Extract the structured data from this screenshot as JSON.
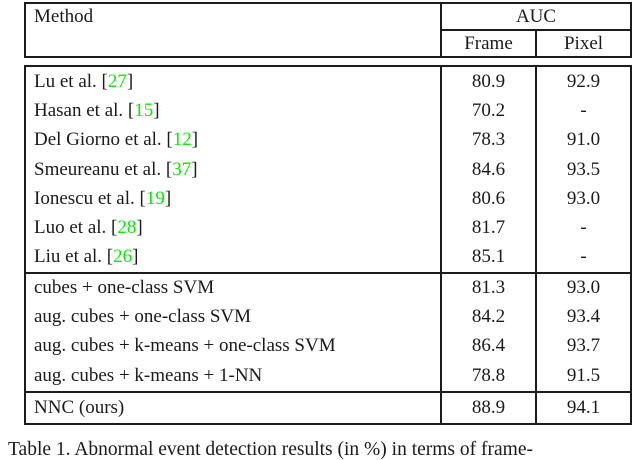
{
  "colors": {
    "text": "#1a1a1a",
    "border": "#1c1c1c",
    "citation_green": "#00ee00",
    "background": "#ffffff"
  },
  "table": {
    "header": {
      "method_label": "Method",
      "auc_label": "AUC",
      "frame_label": "Frame",
      "pixel_label": "Pixel"
    },
    "sections": [
      {
        "rows": [
          {
            "method": "Lu et al.",
            "cite": "27",
            "frame": "80.9",
            "pixel": "92.9"
          },
          {
            "method": "Hasan et al.",
            "cite": "15",
            "frame": "70.2",
            "pixel": "-"
          },
          {
            "method": "Del Giorno et al.",
            "cite": "12",
            "frame": "78.3",
            "pixel": "91.0"
          },
          {
            "method": "Smeureanu et al.",
            "cite": "37",
            "frame": "84.6",
            "pixel": "93.5"
          },
          {
            "method": "Ionescu et al.",
            "cite": "19",
            "frame": "80.6",
            "pixel": "93.0"
          },
          {
            "method": "Luo et al.",
            "cite": "28",
            "frame": "81.7",
            "pixel": "-"
          },
          {
            "method": "Liu et al.",
            "cite": "26",
            "frame": "85.1",
            "pixel": "-"
          }
        ]
      },
      {
        "rows": [
          {
            "method": "cubes + one-class SVM",
            "frame": "81.3",
            "pixel": "93.0"
          },
          {
            "method": "aug. cubes + one-class SVM",
            "frame": "84.2",
            "pixel": "93.4"
          },
          {
            "method": "aug. cubes + k-means + one-class SVM",
            "frame": "86.4",
            "pixel": "93.7"
          },
          {
            "method": "aug. cubes + k-means + 1-NN",
            "frame": "78.8",
            "pixel": "91.5"
          }
        ]
      },
      {
        "rows": [
          {
            "method": "NNC (ours)",
            "frame": "88.9",
            "pixel": "94.1"
          }
        ]
      }
    ],
    "caption": "Table 1. Abnormal event detection results (in %) in terms of frame-"
  }
}
